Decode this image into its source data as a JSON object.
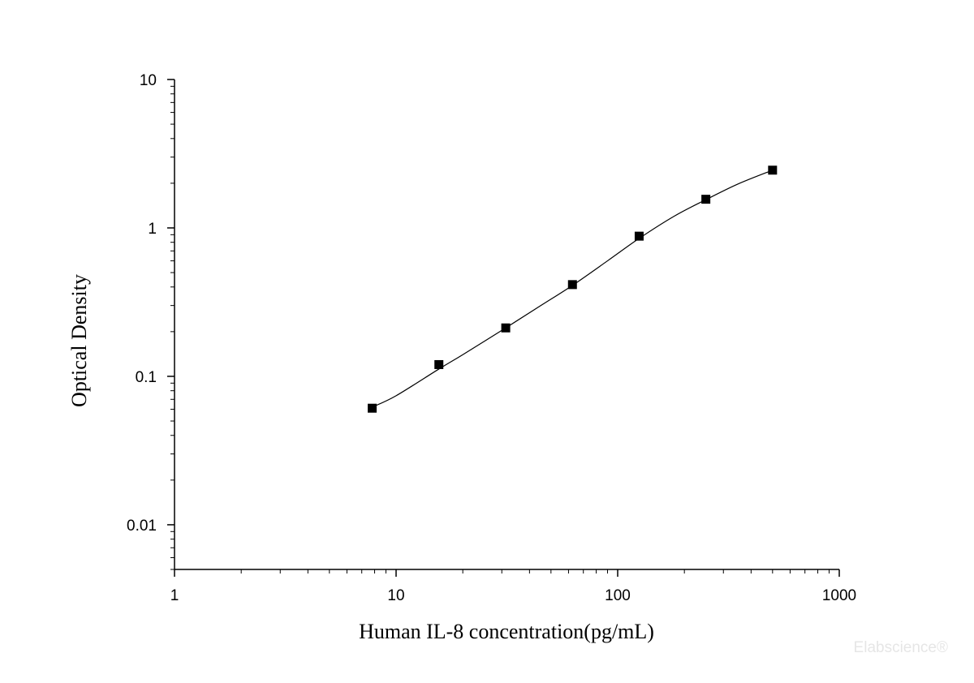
{
  "chart_data": {
    "type": "scatter",
    "title": "",
    "xlabel": "Human IL-8 concentration(pg/mL)",
    "ylabel": "Optical Density",
    "xscale": "log",
    "yscale": "log",
    "xlim": [
      1,
      1000
    ],
    "ylim": [
      0.005,
      10
    ],
    "grid": false,
    "legend": "none",
    "x_tick_labels": [
      "1",
      "10",
      "100",
      "1000"
    ],
    "y_tick_labels": [
      "0.01",
      "0.1",
      "1",
      "10"
    ],
    "series": [
      {
        "marker": "square",
        "x": [
          7.8,
          15.6,
          31.25,
          62.5,
          125,
          250,
          500
        ],
        "y": [
          0.061,
          0.12,
          0.212,
          0.415,
          0.88,
          1.56,
          2.45
        ]
      }
    ],
    "fit_curve": {
      "type": "smooth",
      "x": [
        7.8,
        10,
        15.6,
        20,
        31.25,
        45,
        62.5,
        90,
        125,
        180,
        250,
        350,
        500
      ],
      "y": [
        0.062,
        0.074,
        0.112,
        0.14,
        0.212,
        0.3,
        0.41,
        0.6,
        0.85,
        1.2,
        1.55,
        1.98,
        2.45
      ]
    },
    "colors": {
      "axis": "#000000",
      "marker": "#000000",
      "curve": "#000000"
    }
  },
  "watermark": "Elabscience®"
}
